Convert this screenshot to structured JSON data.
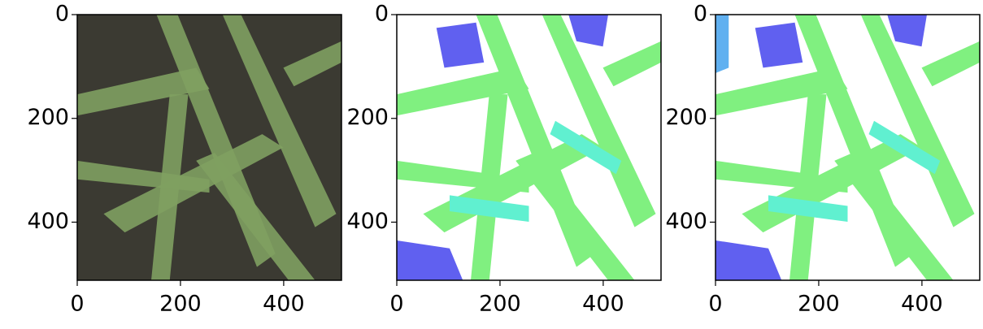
{
  "chart_data": [
    {
      "type": "image",
      "xlim": [
        0,
        512
      ],
      "ylim": [
        512,
        0
      ],
      "xticks": [
        0,
        200,
        400
      ],
      "yticks": [
        0,
        200,
        400
      ]
    },
    {
      "type": "image",
      "xlim": [
        0,
        512
      ],
      "ylim": [
        512,
        0
      ],
      "xticks": [
        0,
        200,
        400
      ],
      "yticks": [
        0,
        200,
        400
      ]
    },
    {
      "type": "image",
      "xlim": [
        0,
        512
      ],
      "ylim": [
        512,
        0
      ],
      "xticks": [
        0,
        200,
        400
      ],
      "yticks": [
        0,
        200,
        400
      ]
    }
  ]
}
